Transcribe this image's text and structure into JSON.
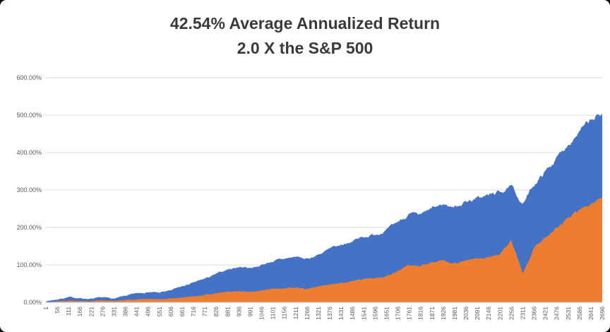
{
  "window": {
    "background": "#000000",
    "card_color": "#ffffff"
  },
  "chart_data": {
    "type": "area",
    "title_line1": "42.54% Average Annualized Return",
    "title_line2": "2.0 X the S&P 500",
    "legend": "none",
    "grid": true,
    "ylim": [
      0,
      600
    ],
    "xlim": [
      1,
      2696
    ],
    "y_tick_labels": [
      "0.00%",
      "100.00%",
      "200.00%",
      "300.00%",
      "400.00%",
      "500.00%",
      "600.00%"
    ],
    "x": [
      1,
      56,
      111,
      166,
      221,
      276,
      331,
      386,
      441,
      496,
      551,
      606,
      661,
      716,
      771,
      826,
      881,
      936,
      991,
      1046,
      1101,
      1156,
      1211,
      1266,
      1321,
      1376,
      1431,
      1486,
      1541,
      1596,
      1651,
      1706,
      1761,
      1816,
      1871,
      1926,
      1981,
      2036,
      2091,
      2146,
      2201,
      2256,
      2311,
      2366,
      2421,
      2476,
      2531,
      2586,
      2641,
      2696
    ],
    "axis_label_color": "#595959",
    "gridline_color": "#D9D9D9",
    "axis_line_color": "#BFBFBF",
    "series": [
      {
        "name": "blue-area",
        "color": "#4472C4",
        "values": [
          3,
          8,
          14,
          11,
          9,
          13,
          10,
          17,
          24,
          28,
          26,
          32,
          42,
          52,
          63,
          75,
          88,
          95,
          92,
          100,
          110,
          116,
          122,
          115,
          128,
          142,
          152,
          165,
          175,
          182,
          192,
          215,
          235,
          232,
          250,
          262,
          255,
          270,
          278,
          286,
          295,
          308,
          262,
          315,
          350,
          385,
          425,
          458,
          482,
          505
        ],
        "noise_base": 1.5,
        "noise_scale": 0.018,
        "seed": 7
      },
      {
        "name": "orange-area",
        "color": "#ED7D31",
        "values": [
          1,
          3,
          5,
          4,
          3,
          5,
          4,
          6,
          8,
          9,
          8,
          10,
          13,
          16,
          20,
          24,
          28,
          30,
          28,
          32,
          36,
          38,
          40,
          36,
          42,
          47,
          52,
          57,
          62,
          66,
          70,
          85,
          100,
          96,
          108,
          112,
          105,
          112,
          116,
          120,
          128,
          165,
          75,
          145,
          175,
          200,
          225,
          245,
          262,
          283
        ],
        "noise_base": 0.8,
        "noise_scale": 0.02,
        "seed": 13
      }
    ]
  }
}
